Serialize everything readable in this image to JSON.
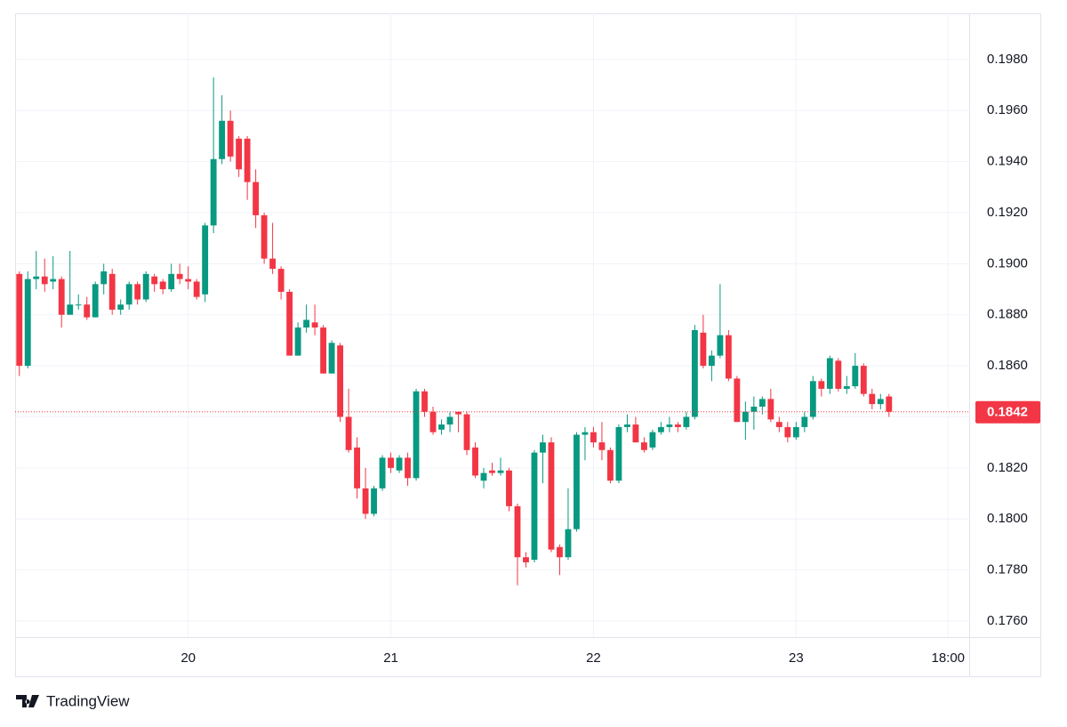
{
  "chart_data": {
    "type": "candlestick",
    "branding": "TradingView",
    "up_color": "#089981",
    "down_color": "#f23645",
    "grid": true,
    "xlim": [
      -0.5,
      112.5
    ],
    "xticks": [
      {
        "value": 20,
        "label": "20"
      },
      {
        "value": 44,
        "label": "21"
      },
      {
        "value": 68,
        "label": "22"
      },
      {
        "value": 92,
        "label": "23"
      },
      {
        "value": 110,
        "label": "18:00"
      }
    ],
    "ylim": [
      0.17537,
      0.19981
    ],
    "yticks": [
      {
        "value": 0.176,
        "label": "0.1760"
      },
      {
        "value": 0.178,
        "label": "0.1780"
      },
      {
        "value": 0.18,
        "label": "0.1800"
      },
      {
        "value": 0.182,
        "label": "0.1820"
      },
      {
        "value": 0.184,
        "label": "0.1840"
      },
      {
        "value": 0.186,
        "label": "0.1860"
      },
      {
        "value": 0.188,
        "label": "0.1880"
      },
      {
        "value": 0.19,
        "label": "0.1900"
      },
      {
        "value": 0.192,
        "label": "0.1920"
      },
      {
        "value": 0.194,
        "label": "0.1940"
      },
      {
        "value": 0.196,
        "label": "0.1960"
      },
      {
        "value": 0.198,
        "label": "0.1980"
      }
    ],
    "last_price": 0.1842,
    "open": [
      0.1896,
      0.186,
      0.1894,
      0.1895,
      0.1893,
      0.1894,
      0.188,
      0.1884,
      0.1884,
      0.1879,
      0.1892,
      0.1896,
      0.1882,
      0.1884,
      0.1892,
      0.1886,
      0.1895,
      0.1893,
      0.189,
      0.1896,
      0.1894,
      0.1893,
      0.1888,
      0.1915,
      0.1941,
      0.1956,
      0.1949,
      0.1949,
      0.1932,
      0.1919,
      0.1902,
      0.1898,
      0.1889,
      0.1864,
      0.1875,
      0.1877,
      0.1875,
      0.1857,
      0.1868,
      0.184,
      0.1828,
      0.1812,
      0.1802,
      0.1812,
      0.1824,
      0.1819,
      0.1824,
      0.1816,
      0.185,
      0.1842,
      0.1835,
      0.1837,
      0.1842,
      0.1841,
      0.1828,
      0.1815,
      0.1819,
      0.1818,
      0.1819,
      0.1805,
      0.1785,
      0.1784,
      0.1826,
      0.183,
      0.1789,
      0.1785,
      0.1796,
      0.1833,
      0.1834,
      0.183,
      0.1827,
      0.1815,
      0.1836,
      0.1837,
      0.183,
      0.1828,
      0.1834,
      0.1836,
      0.1837,
      0.1836,
      0.184,
      0.1873,
      0.186,
      0.1864,
      0.1872,
      0.1855,
      0.1838,
      0.1842,
      0.1844,
      0.1847,
      0.1838,
      0.1836,
      0.1832,
      0.1836,
      0.184,
      0.1854,
      0.1851,
      0.1862,
      0.1851,
      0.1852,
      0.186,
      0.1849,
      0.1845,
      0.1848
    ],
    "high": [
      0.1897,
      0.1897,
      0.1905,
      0.1902,
      0.1903,
      0.1895,
      0.1905,
      0.1888,
      0.1887,
      0.1893,
      0.19,
      0.1898,
      0.1886,
      0.1893,
      0.1893,
      0.1897,
      0.1896,
      0.1894,
      0.19,
      0.19,
      0.1899,
      0.1894,
      0.1916,
      0.1973,
      0.1966,
      0.196,
      0.195,
      0.195,
      0.1937,
      0.192,
      0.1916,
      0.1899,
      0.189,
      0.1877,
      0.1884,
      0.1884,
      0.1876,
      0.187,
      0.1869,
      0.1851,
      0.1832,
      0.182,
      0.1813,
      0.1825,
      0.1826,
      0.1825,
      0.1826,
      0.1851,
      0.1851,
      0.1844,
      0.1839,
      0.1842,
      0.1842,
      0.1842,
      0.183,
      0.182,
      0.1822,
      0.1824,
      0.182,
      0.1806,
      0.1787,
      0.1827,
      0.1833,
      0.1832,
      0.179,
      0.1812,
      0.1834,
      0.1836,
      0.1836,
      0.1838,
      0.1828,
      0.1837,
      0.1841,
      0.184,
      0.1832,
      0.1835,
      0.1838,
      0.184,
      0.1838,
      0.1842,
      0.1876,
      0.188,
      0.1866,
      0.1892,
      0.1874,
      0.1856,
      0.1846,
      0.1848,
      0.1848,
      0.1851,
      0.184,
      0.1838,
      0.1838,
      0.1842,
      0.1856,
      0.1855,
      0.1864,
      0.1863,
      0.1856,
      0.1865,
      0.1861,
      0.1851,
      0.1849,
      0.1849
    ],
    "low": [
      0.1856,
      0.1859,
      0.189,
      0.1889,
      0.189,
      0.1875,
      0.188,
      0.1882,
      0.1878,
      0.1879,
      0.1888,
      0.188,
      0.188,
      0.1882,
      0.1884,
      0.1885,
      0.1889,
      0.1888,
      0.1889,
      0.1892,
      0.189,
      0.1886,
      0.1885,
      0.1912,
      0.1939,
      0.194,
      0.1934,
      0.1925,
      0.1914,
      0.19,
      0.1896,
      0.1886,
      0.1864,
      0.1864,
      0.1873,
      0.1872,
      0.1857,
      0.1857,
      0.1838,
      0.1826,
      0.1808,
      0.18,
      0.1801,
      0.1811,
      0.1818,
      0.1818,
      0.1813,
      0.1815,
      0.184,
      0.1833,
      0.1833,
      0.1834,
      0.1834,
      0.1825,
      0.1816,
      0.1812,
      0.1817,
      0.1817,
      0.1803,
      0.1774,
      0.1781,
      0.1783,
      0.1814,
      0.1787,
      0.1778,
      0.1784,
      0.1795,
      0.1823,
      0.1828,
      0.1823,
      0.1814,
      0.1814,
      0.1834,
      0.183,
      0.1826,
      0.1827,
      0.1833,
      0.1834,
      0.1834,
      0.1835,
      0.1839,
      0.1859,
      0.1854,
      0.1863,
      0.1854,
      0.1838,
      0.1831,
      0.1835,
      0.1841,
      0.1838,
      0.1834,
      0.183,
      0.1831,
      0.1834,
      0.1839,
      0.1848,
      0.1849,
      0.185,
      0.1849,
      0.1851,
      0.1848,
      0.1843,
      0.1843,
      0.184
    ],
    "close": [
      0.186,
      0.1894,
      0.1895,
      0.1892,
      0.1894,
      0.188,
      0.1884,
      0.1884,
      0.1879,
      0.1892,
      0.1897,
      0.1882,
      0.1884,
      0.1892,
      0.1886,
      0.1896,
      0.1892,
      0.189,
      0.1896,
      0.1894,
      0.1893,
      0.1887,
      0.1915,
      0.1941,
      0.1956,
      0.1942,
      0.1937,
      0.1932,
      0.1919,
      0.1902,
      0.1898,
      0.1889,
      0.1864,
      0.1875,
      0.1878,
      0.1875,
      0.1857,
      0.1869,
      0.184,
      0.1827,
      0.1812,
      0.1802,
      0.1812,
      0.1824,
      0.182,
      0.1824,
      0.1816,
      0.185,
      0.1842,
      0.1834,
      0.1837,
      0.184,
      0.1841,
      0.1827,
      0.1817,
      0.1818,
      0.1818,
      0.1819,
      0.1805,
      0.1785,
      0.1783,
      0.1826,
      0.183,
      0.1788,
      0.1785,
      0.1796,
      0.1833,
      0.1834,
      0.183,
      0.1827,
      0.1815,
      0.1836,
      0.1837,
      0.183,
      0.1827,
      0.1834,
      0.1836,
      0.1837,
      0.1836,
      0.184,
      0.1874,
      0.186,
      0.1864,
      0.1872,
      0.1855,
      0.1838,
      0.1842,
      0.1844,
      0.1847,
      0.1839,
      0.1836,
      0.1832,
      0.1836,
      0.184,
      0.1854,
      0.1851,
      0.1863,
      0.1851,
      0.1852,
      0.186,
      0.1849,
      0.1845,
      0.1847,
      0.1842
    ]
  }
}
